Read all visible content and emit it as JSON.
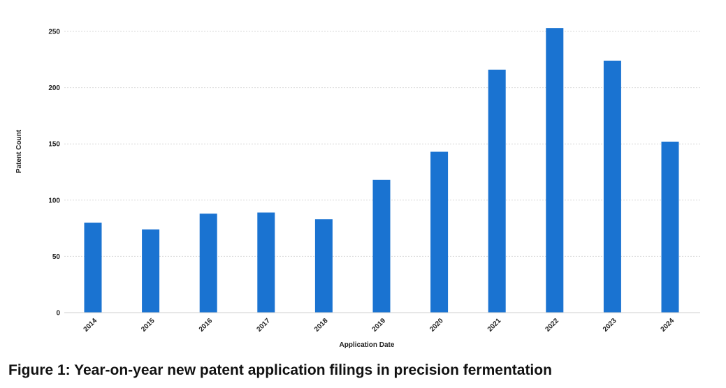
{
  "caption": "Figure 1: Year-on-year new patent application filings in precision fermentation",
  "chart_data": {
    "type": "bar",
    "categories": [
      "2014",
      "2015",
      "2016",
      "2017",
      "2018",
      "2019",
      "2020",
      "2021",
      "2022",
      "2023",
      "2024"
    ],
    "values": [
      80,
      74,
      88,
      89,
      83,
      118,
      143,
      216,
      253,
      224,
      152
    ],
    "xlabel": "Application Date",
    "ylabel": "Patent Count",
    "ylim": [
      0,
      250
    ],
    "yticks": [
      0,
      50,
      100,
      150,
      200,
      250
    ],
    "grid": true,
    "bar_color": "#1a73d1",
    "grid_color": "#d9d9d9"
  }
}
